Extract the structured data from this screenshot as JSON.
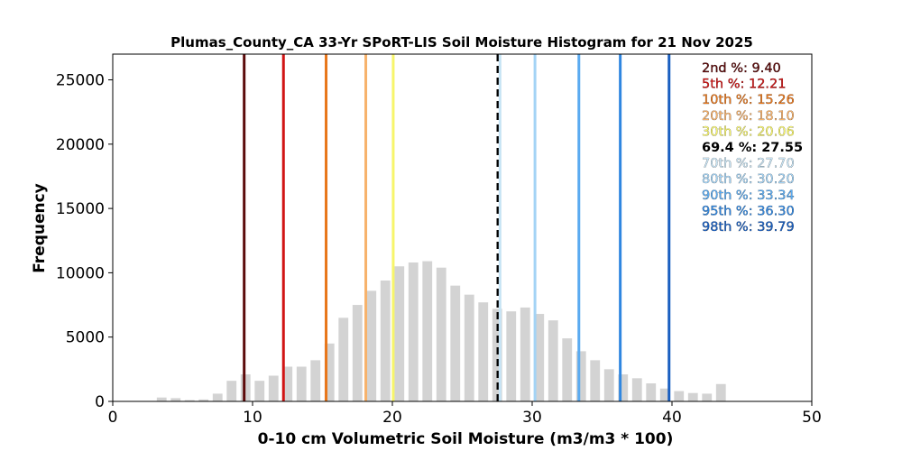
{
  "chart_data": {
    "type": "bar",
    "title": "Plumas_County_CA 33-Yr SPoRT-LIS Soil Moisture Histogram for 21 Nov 2025",
    "xlabel": "0-10 cm Volumetric Soil Moisture (m3/m3 * 100)",
    "ylabel": "Frequency",
    "xlim": [
      0,
      50
    ],
    "ylim": [
      0,
      27000
    ],
    "xticks": [
      "0",
      "10",
      "20",
      "30",
      "40",
      "50"
    ],
    "yticks": [
      "0",
      "5000",
      "10000",
      "15000",
      "20000",
      "25000"
    ],
    "grid": false,
    "bar_color": "#d3d3d3",
    "bars": {
      "x": [
        3.5,
        4.5,
        5.5,
        6.5,
        7.5,
        8.5,
        9.5,
        10.5,
        11.5,
        12.5,
        13.5,
        14.5,
        15.5,
        16.5,
        17.5,
        18.5,
        19.5,
        20.5,
        21.5,
        22.5,
        23.5,
        24.5,
        25.5,
        26.5,
        27.5,
        28.5,
        29.5,
        30.5,
        31.5,
        32.5,
        33.5,
        34.5,
        35.5,
        36.5,
        37.5,
        38.5,
        39.5,
        40.5,
        41.5,
        42.5,
        43.5
      ],
      "values": [
        300,
        250,
        100,
        150,
        600,
        1600,
        2100,
        1600,
        2000,
        2700,
        2700,
        3200,
        4500,
        6500,
        7500,
        8600,
        9400,
        10500,
        10800,
        10900,
        10400,
        9000,
        8300,
        7700,
        7200,
        7000,
        7300,
        6800,
        6300,
        4900,
        3900,
        3200,
        2500,
        2100,
        1800,
        1400,
        1000,
        800,
        650,
        600,
        1350
      ]
    },
    "percentile_lines": [
      {
        "label": "2nd %",
        "value": 9.4,
        "text": "2nd %: 9.40",
        "color": "#5c0a0a",
        "dashed": false
      },
      {
        "label": "5th %",
        "value": 12.21,
        "text": "5th %: 12.21",
        "color": "#d11515",
        "dashed": false
      },
      {
        "label": "10th %",
        "value": 15.26,
        "text": "10th %: 15.26",
        "color": "#e8761a",
        "dashed": false
      },
      {
        "label": "20th %",
        "value": 18.1,
        "text": "20th %: 18.10",
        "color": "#f7b26b",
        "dashed": false
      },
      {
        "label": "30th %",
        "value": 20.06,
        "text": "30th %: 20.06",
        "color": "#f7f56a",
        "dashed": false
      },
      {
        "label": "69.4 %",
        "value": 27.55,
        "text": "69.4 %: 27.55",
        "color": "#000000",
        "dashed": true
      },
      {
        "label": "70th %",
        "value": 27.7,
        "text": "70th %: 27.70",
        "color": "#c7e4f5",
        "dashed": false
      },
      {
        "label": "80th %",
        "value": 30.2,
        "text": "80th %: 30.20",
        "color": "#a3d3f5",
        "dashed": false
      },
      {
        "label": "90th %",
        "value": 33.34,
        "text": "90th %: 33.34",
        "color": "#5aaaf0",
        "dashed": false
      },
      {
        "label": "95th %",
        "value": 36.3,
        "text": "95th %: 36.30",
        "color": "#2f86e0",
        "dashed": false
      },
      {
        "label": "98th %",
        "value": 39.79,
        "text": "98th %: 39.79",
        "color": "#1a5fc0",
        "dashed": false
      }
    ],
    "legend_placement": "top-right"
  }
}
